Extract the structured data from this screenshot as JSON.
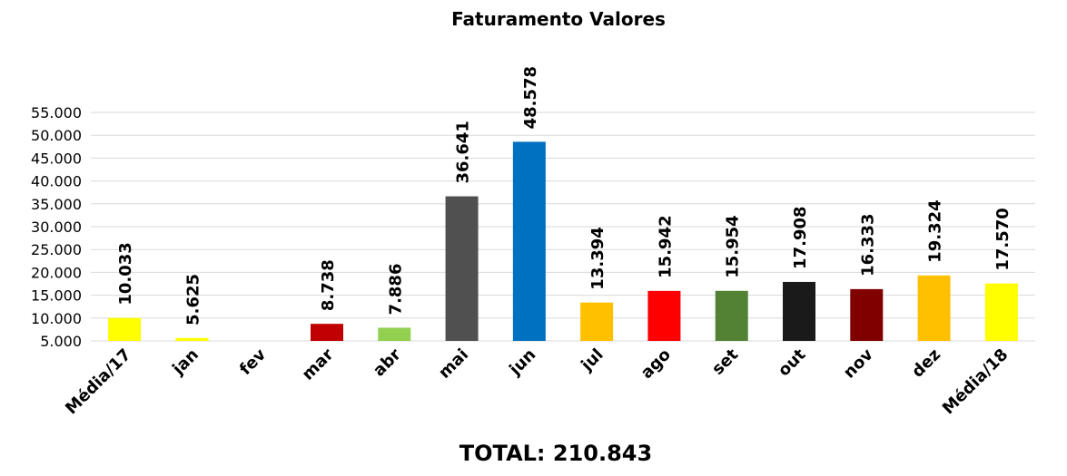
{
  "chart_data": {
    "type": "bar",
    "title": "Faturamento Valores",
    "categories": [
      "Média/17",
      "jan",
      "fev",
      "mar",
      "abr",
      "mai",
      "jun",
      "jul",
      "ago",
      "set",
      "out",
      "nov",
      "dez",
      "Média/18"
    ],
    "values": [
      10033,
      5625,
      null,
      8738,
      7886,
      36641,
      48578,
      13394,
      15942,
      15954,
      17908,
      16333,
      19324,
      17570
    ],
    "value_labels": [
      "10.033",
      "5.625",
      null,
      "8.738",
      "7.886",
      "36.641",
      "48.578",
      "13.394",
      "15.942",
      "15.954",
      "17.908",
      "16.333",
      "19.324",
      "17.570"
    ],
    "colors": [
      "#ffff00",
      "#ffff00",
      "#ffff00",
      "#c00000",
      "#92d050",
      "#505050",
      "#0070c0",
      "#ffc000",
      "#ff0000",
      "#548235",
      "#1a1a1a",
      "#800000",
      "#ffc000",
      "#ffff00"
    ],
    "ylim": [
      5000,
      55000
    ],
    "yticks": [
      {
        "value": 5000,
        "label": "5.000"
      },
      {
        "value": 10000,
        "label": "10.000"
      },
      {
        "value": 15000,
        "label": "15.000"
      },
      {
        "value": 20000,
        "label": "20.000"
      },
      {
        "value": 25000,
        "label": "25.000"
      },
      {
        "value": 30000,
        "label": "30.000"
      },
      {
        "value": 35000,
        "label": "35.000"
      },
      {
        "value": 40000,
        "label": "40.000"
      },
      {
        "value": 45000,
        "label": "45.000"
      },
      {
        "value": 50000,
        "label": "50.000"
      },
      {
        "value": 55000,
        "label": "55.000"
      }
    ],
    "grid": true,
    "annotation": "TOTAL: 210.843"
  }
}
